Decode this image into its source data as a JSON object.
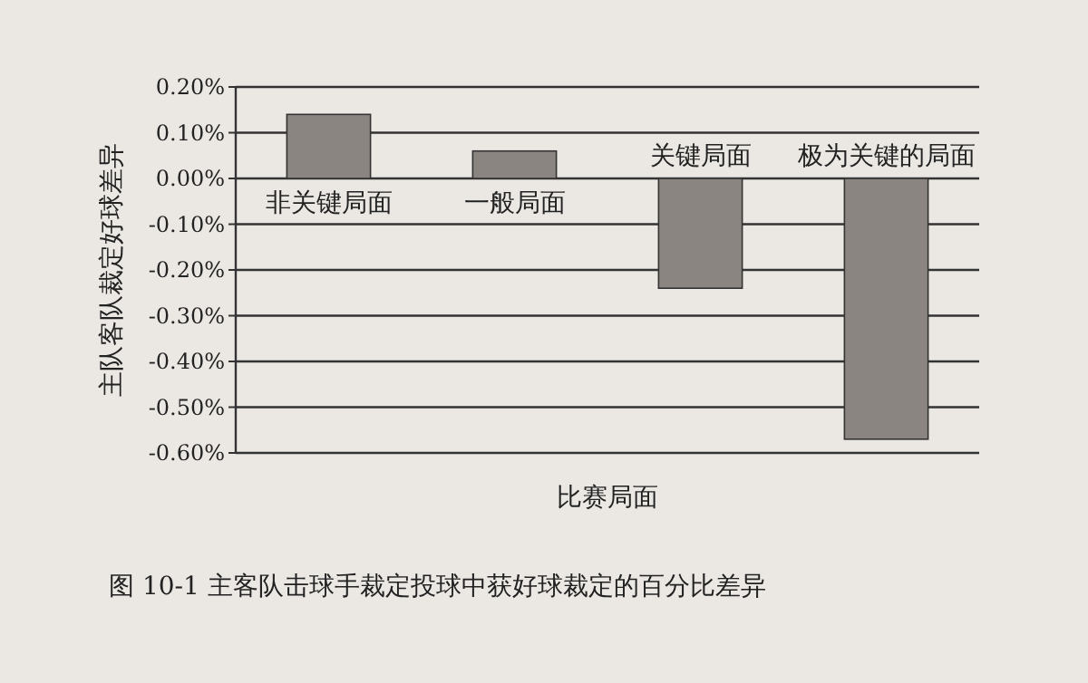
{
  "chart_data": {
    "type": "bar",
    "title": "图 10-1  主客队击球手裁定投球中获好球裁定的百分比差异",
    "xlabel": "比赛局面",
    "ylabel": "主队客队裁定好球差异",
    "categories": [
      "非关键局面",
      "一般局面",
      "关键局面",
      "极为关键的局面"
    ],
    "values": [
      0.14,
      0.06,
      -0.24,
      -0.57
    ],
    "color": "#8a8581",
    "ylim": [
      -0.6,
      0.2
    ],
    "yticks": [
      {
        "value": 0.2,
        "label": "0.20%"
      },
      {
        "value": 0.1,
        "label": "0.10%"
      },
      {
        "value": 0,
        "label": "0.00%"
      },
      {
        "value": -0.1,
        "label": "-0.10%"
      },
      {
        "value": -0.2,
        "label": "-0.20%"
      },
      {
        "value": -0.3,
        "label": "-0.30%"
      },
      {
        "value": -0.4,
        "label": "-0.40%"
      },
      {
        "value": -0.5,
        "label": "-0.50%"
      },
      {
        "value": -0.6,
        "label": "-0.60%"
      }
    ],
    "grid": "y"
  }
}
